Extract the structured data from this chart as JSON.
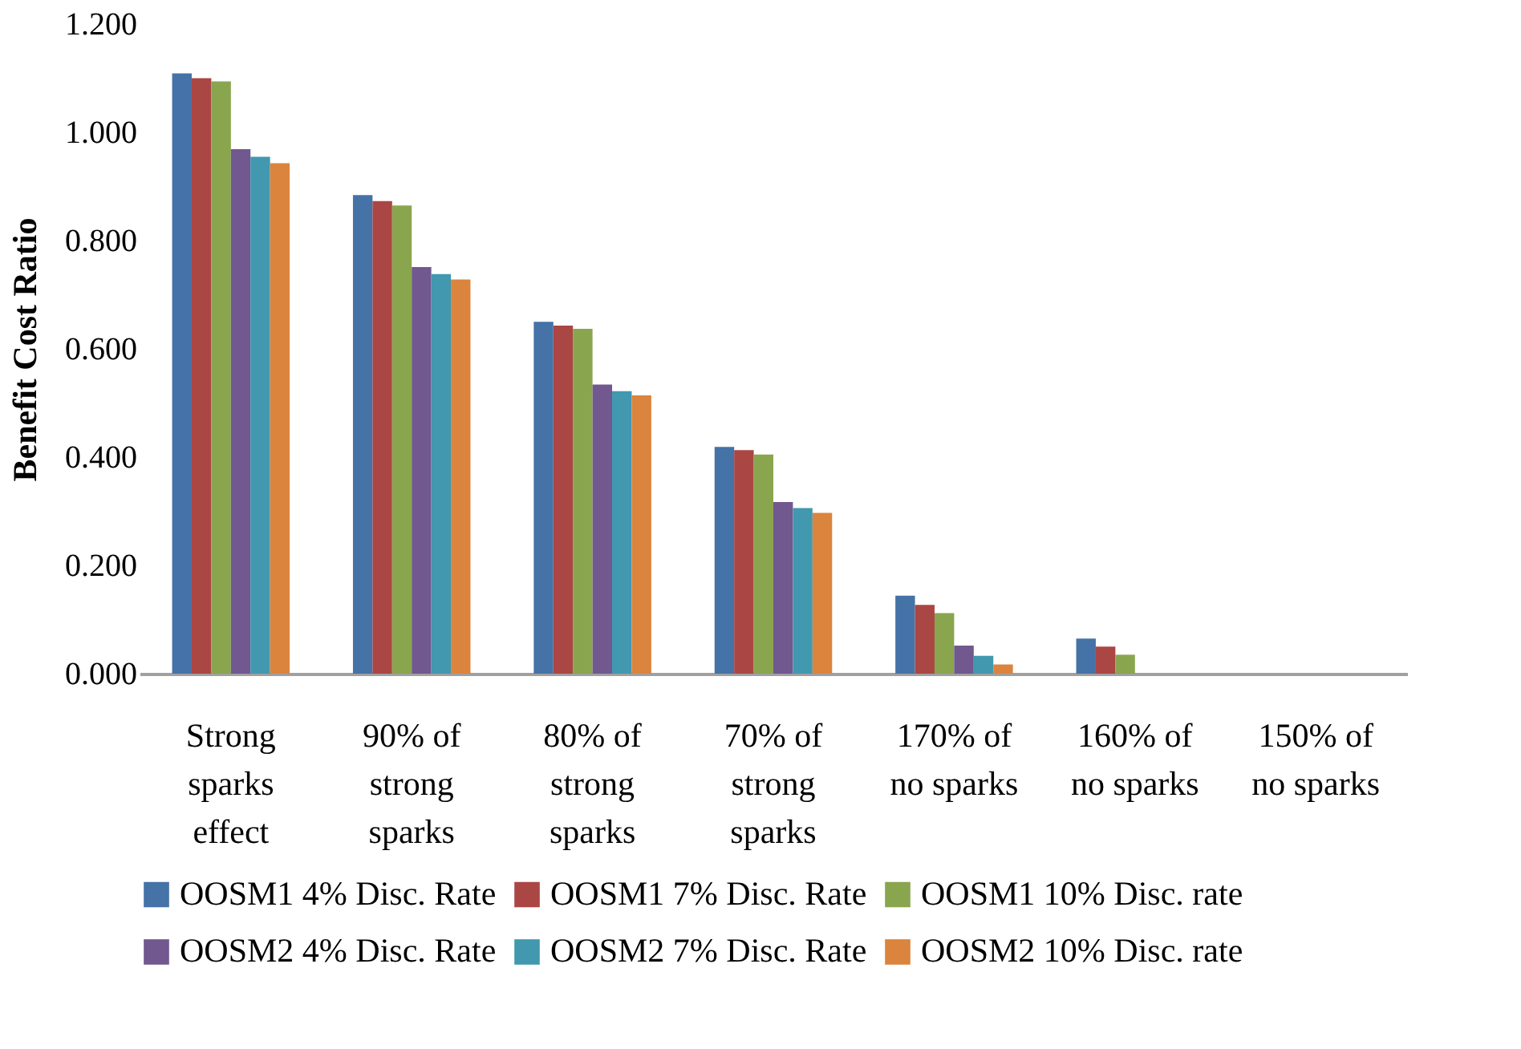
{
  "chart_data": {
    "type": "bar",
    "ylabel": "Benefit Cost Ratio",
    "categories": [
      "Strong sparks effect",
      "90% of strong sparks",
      "80% of strong sparks",
      "70% of strong sparks",
      "170% of no sparks",
      "160% of no sparks",
      "150% of no sparks"
    ],
    "series": [
      {
        "name": "OOSM1 4% Disc. Rate",
        "color": "#4572a7",
        "values": [
          1.109,
          0.884,
          0.65,
          0.419,
          0.144,
          0.065,
          0
        ]
      },
      {
        "name": "OOSM1 7% Disc. Rate",
        "color": "#aa4643",
        "values": [
          1.1,
          0.873,
          0.643,
          0.413,
          0.127,
          0.05,
          0
        ]
      },
      {
        "name": "OOSM1 10% Disc. rate",
        "color": "#89a54e",
        "values": [
          1.094,
          0.865,
          0.637,
          0.405,
          0.112,
          0.035,
          0
        ]
      },
      {
        "name": "OOSM2 4% Disc. Rate",
        "color": "#71588f",
        "values": [
          0.969,
          0.751,
          0.534,
          0.317,
          0.052,
          0,
          0
        ]
      },
      {
        "name": "OOSM2 7% Disc. Rate",
        "color": "#4198af",
        "values": [
          0.955,
          0.738,
          0.522,
          0.306,
          0.033,
          0,
          0
        ]
      },
      {
        "name": "OOSM2 10% Disc. rate",
        "color": "#db843d",
        "values": [
          0.943,
          0.728,
          0.514,
          0.297,
          0.017,
          0,
          0
        ]
      }
    ],
    "ylim": [
      0,
      1.2
    ],
    "yticks": [
      {
        "value": 0,
        "label": "0.000"
      },
      {
        "value": 0.2,
        "label": "0.200"
      },
      {
        "value": 0.4,
        "label": "0.400"
      },
      {
        "value": 0.6,
        "label": "0.600"
      },
      {
        "value": 0.8,
        "label": "0.800"
      },
      {
        "value": 1.0,
        "label": "1.000"
      },
      {
        "value": 1.2,
        "label": "1.200"
      }
    ],
    "grid": false,
    "legend": "bottom"
  }
}
